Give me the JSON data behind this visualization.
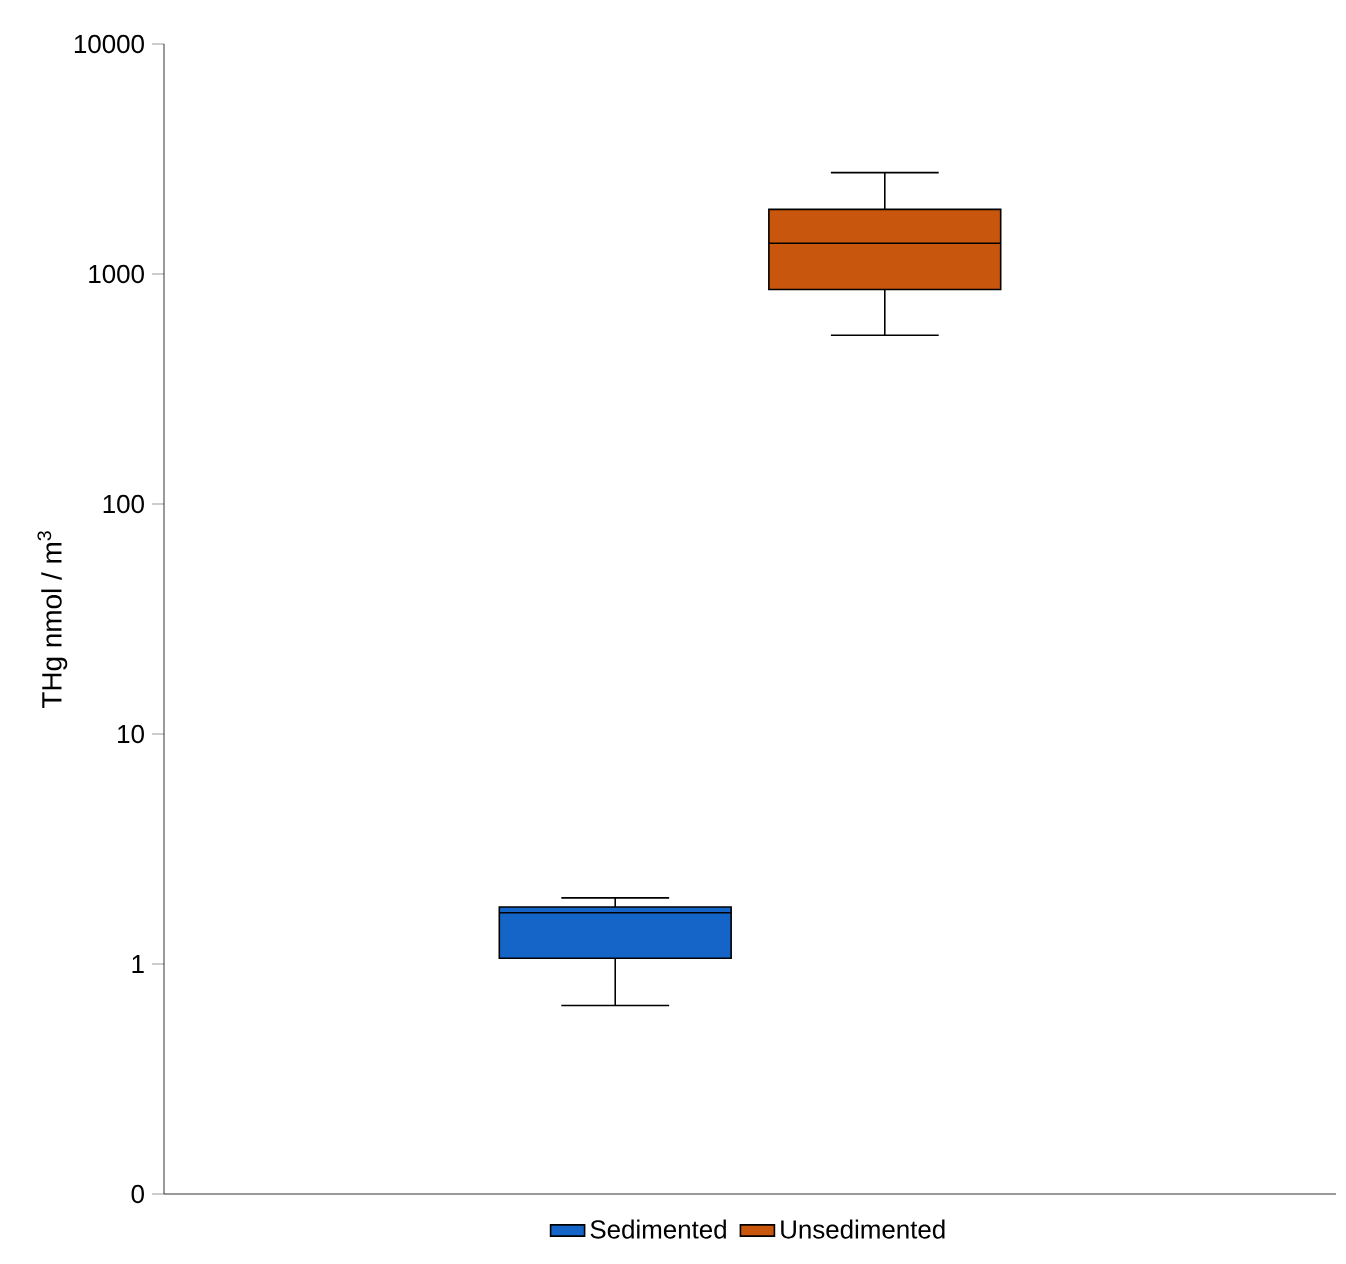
{
  "chart_data": {
    "type": "box",
    "ylabel": "THg nmol / m$^{3}$",
    "categories": [
      null
    ],
    "log": true,
    "ylim": [
      0.1,
      10000
    ],
    "yticks": [
      {
        "value": 0.1,
        "label": "0"
      },
      1,
      10,
      100,
      1000,
      10000
    ],
    "tick_labels": "y",
    "legend": "bottom",
    "grid": false,
    "series": [
      {
        "name": "Sedimented",
        "color": "#1565c8",
        "boxes": [
          {
            "low": 0.66,
            "q1": 1.06,
            "median": 1.67,
            "q3": 1.77,
            "high": 1.94
          }
        ]
      },
      {
        "name": "Unsedimented",
        "color": "#c8560c",
        "boxes": [
          {
            "low": 542,
            "q1": 856,
            "median": 1360,
            "q3": 1910,
            "high": 2760
          }
        ]
      }
    ]
  }
}
